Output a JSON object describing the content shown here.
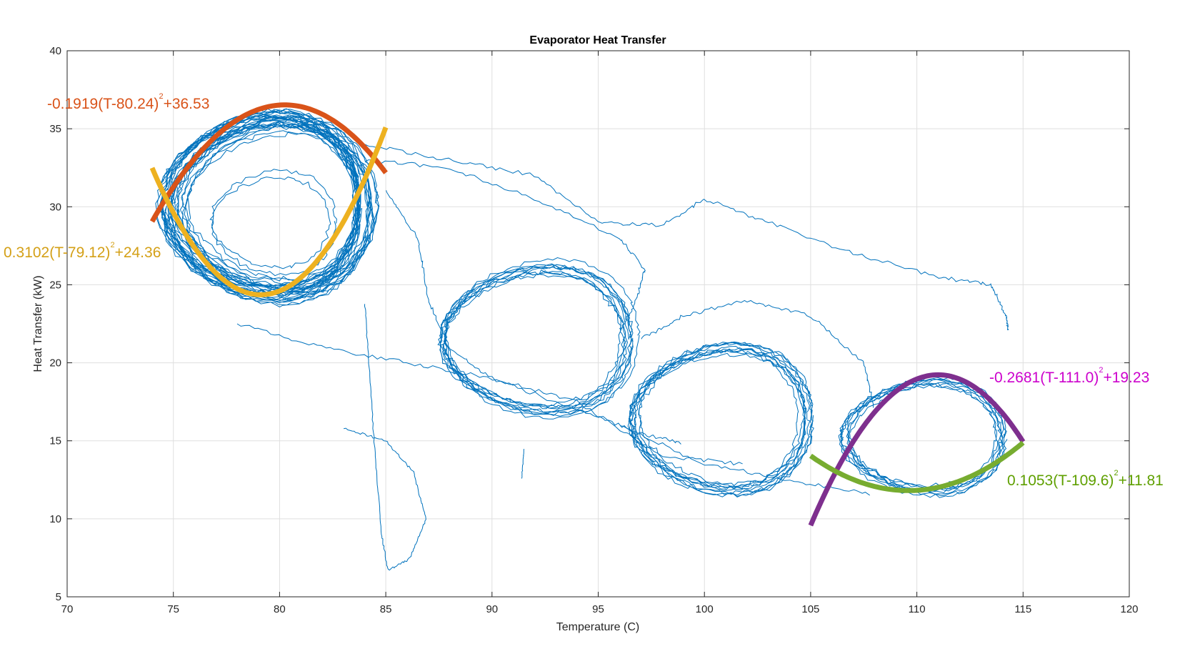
{
  "chart_data": {
    "type": "line",
    "title": "Evaporator Heat Transfer",
    "xlabel": "Temperature (C)",
    "ylabel": "Heat Transfer (kW)",
    "xlim": [
      70,
      120
    ],
    "ylim": [
      5,
      40
    ],
    "xticks": [
      70,
      75,
      80,
      85,
      90,
      95,
      100,
      105,
      110,
      115,
      120
    ],
    "yticks": [
      5,
      10,
      15,
      20,
      25,
      30,
      35,
      40
    ],
    "grid": true,
    "series": [
      {
        "color": "#0072BD",
        "role": "measured-data-loops"
      }
    ],
    "fits": [
      {
        "label_text": "-0.1919(T-80.24)",
        "label_tail": "+36.53",
        "exponent": "2",
        "a": -0.1919,
        "h": 80.24,
        "k": 36.53,
        "x_range": [
          74,
          85
        ],
        "color": "#D95319"
      },
      {
        "label_text": "0.3102(T-79.12)",
        "label_tail": "+24.36",
        "exponent": "2",
        "a": 0.3102,
        "h": 79.12,
        "k": 24.36,
        "x_range": [
          74,
          85
        ],
        "color": "#EDB120"
      },
      {
        "label_text": "-0.2681(T-111.0)",
        "label_tail": "+19.23",
        "exponent": "2",
        "a": -0.2681,
        "h": 111.0,
        "k": 19.23,
        "x_range": [
          105,
          115
        ],
        "color": "#7E2F8E"
      },
      {
        "label_text": "0.1053(T-109.6)",
        "label_tail": "+11.81",
        "exponent": "2",
        "a": 0.1053,
        "h": 109.6,
        "k": 11.81,
        "x_range": [
          105,
          115
        ],
        "color": "#77AC30"
      }
    ],
    "fit_label_colors": [
      "#D95319",
      "#D4A017",
      "#CC00CC",
      "#5FA000"
    ]
  }
}
